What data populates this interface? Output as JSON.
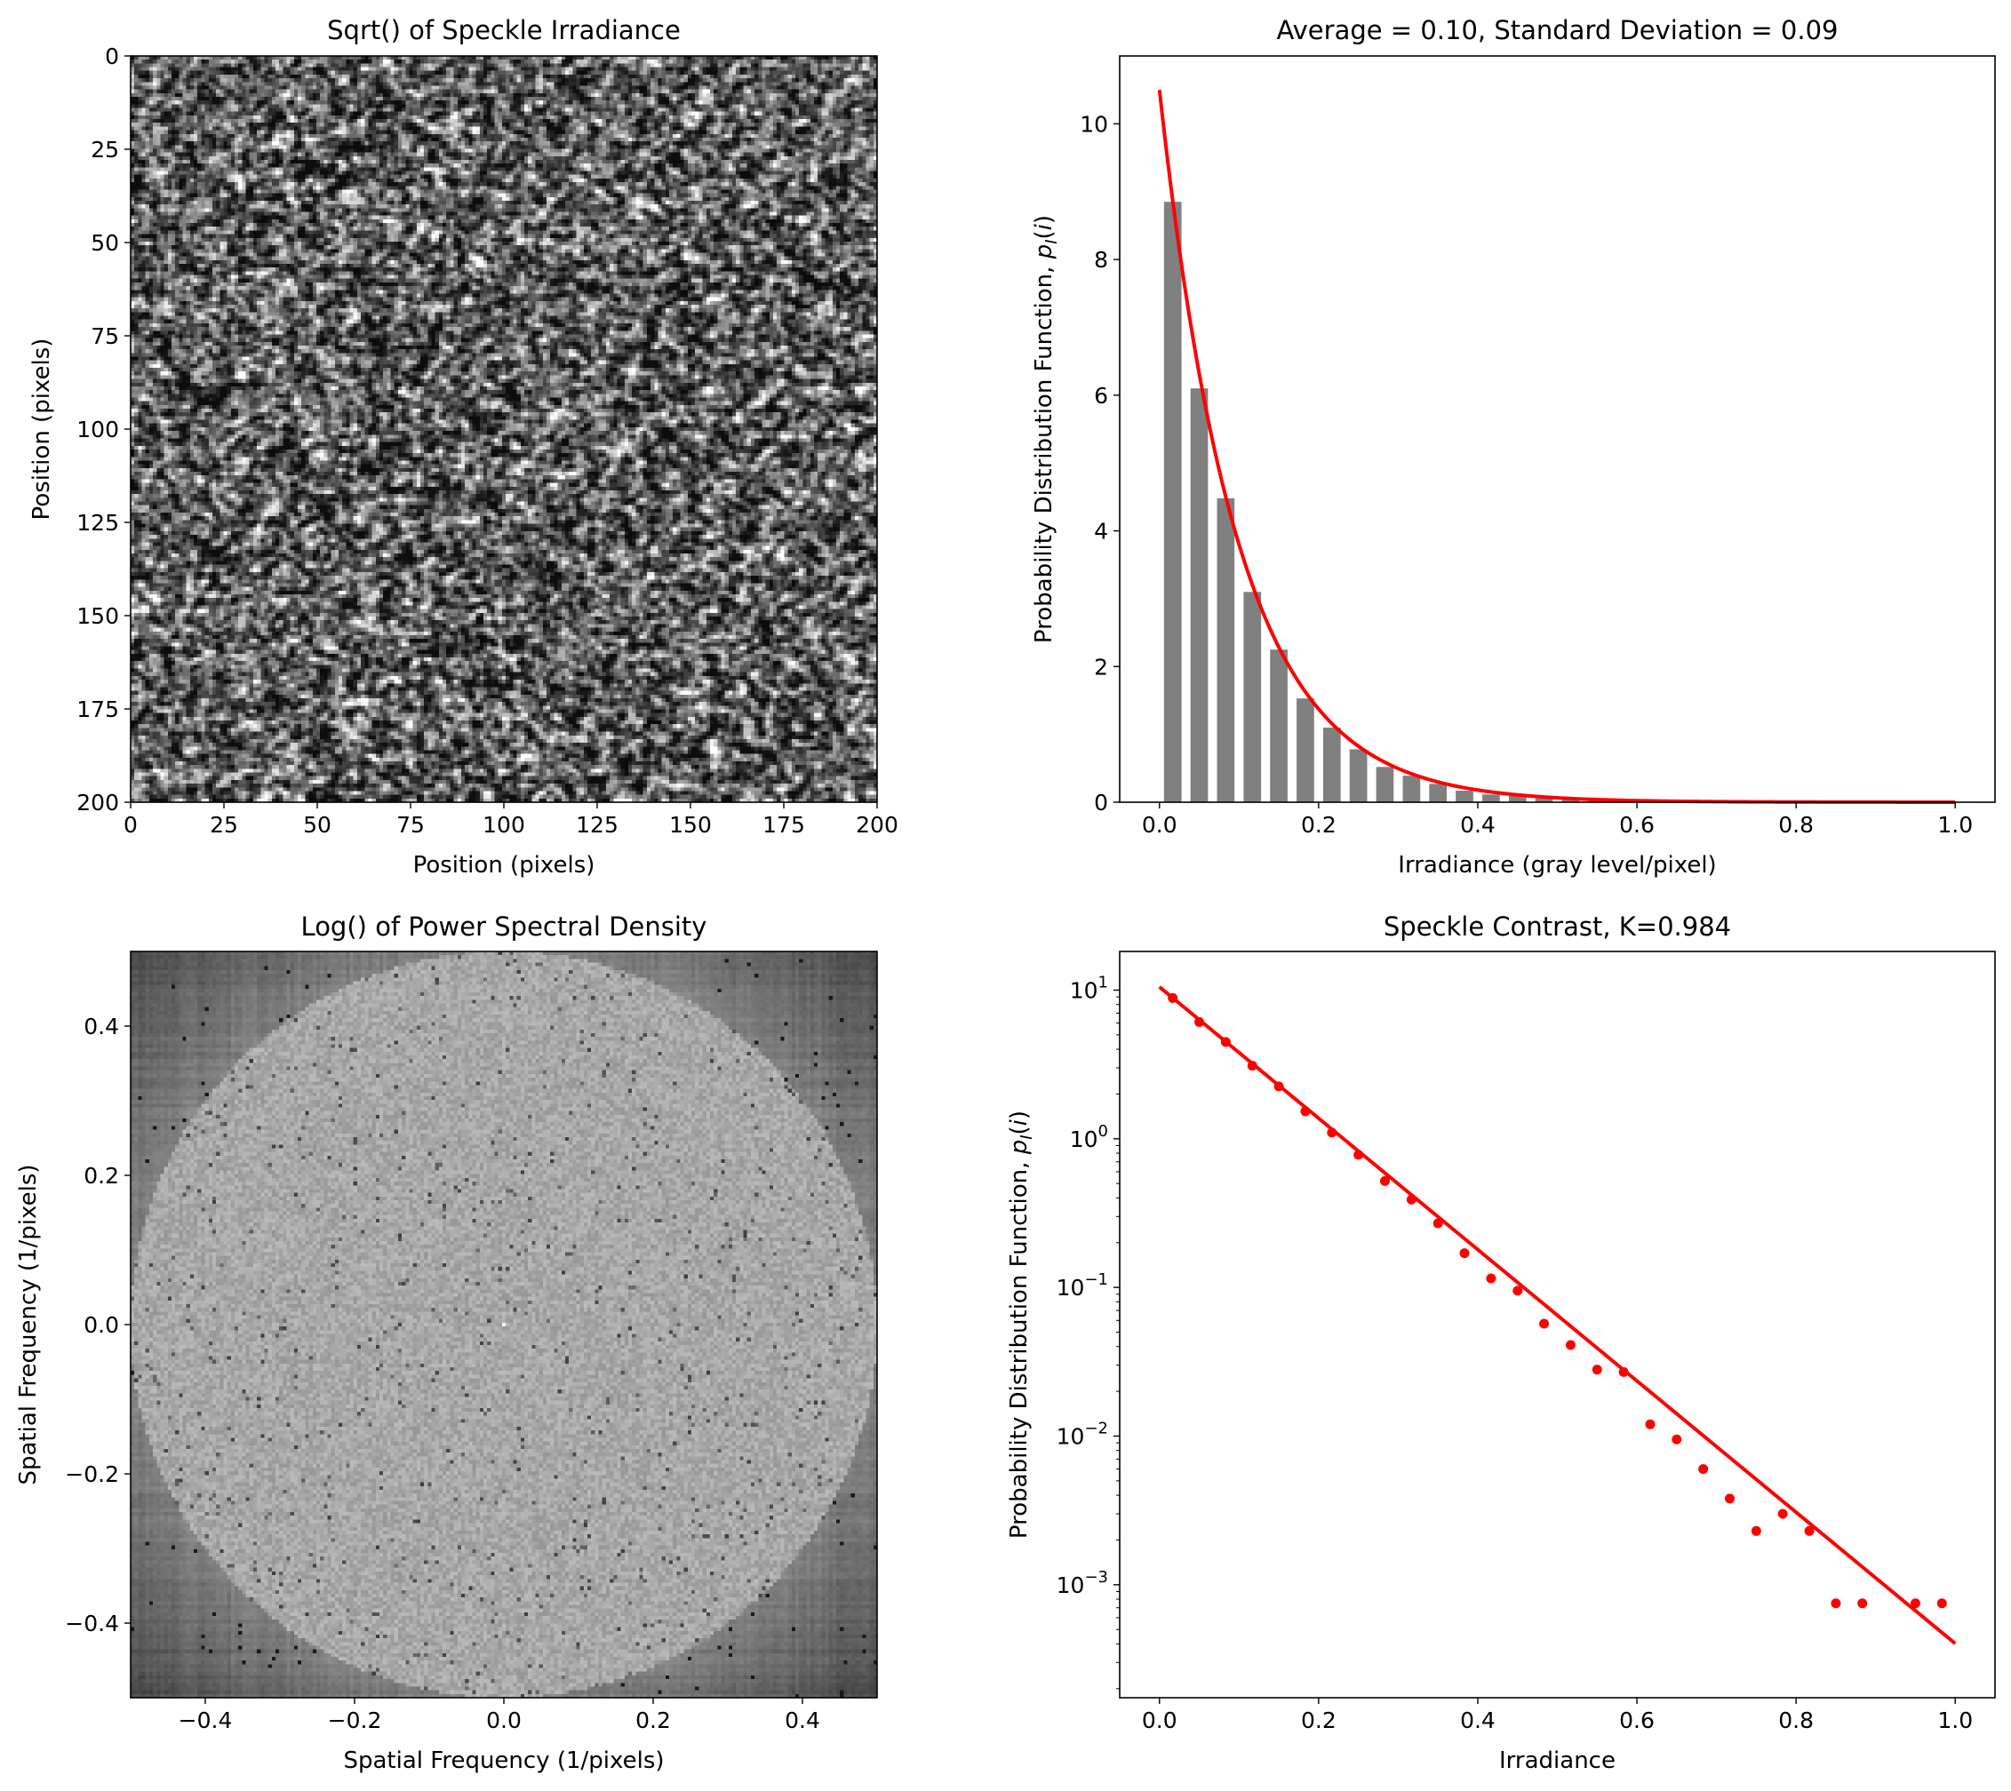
{
  "chart_data": [
    {
      "type": "heatmap",
      "title": "Sqrt() of Speckle Irradiance",
      "xlabel": "Position (pixels)",
      "ylabel": "Position (pixels)",
      "xlim": [
        0,
        200
      ],
      "ylim": [
        200,
        0
      ],
      "xticks": [
        "0",
        "25",
        "50",
        "75",
        "100",
        "125",
        "150",
        "175",
        "200"
      ],
      "yticks": [
        "0",
        "25",
        "50",
        "75",
        "100",
        "125",
        "150",
        "175",
        "200"
      ],
      "colormap": "gray"
    },
    {
      "type": "bar",
      "title": "Average = 0.10, Standard Deviation = 0.09",
      "xlabel": "Irradiance (gray level/pixel)",
      "ylabel_prefix": "Probability Distribution Function, ",
      "ylabel_symbol": "p",
      "ylabel_sub": "I",
      "ylabel_arg": "i",
      "xlim": [
        -0.05,
        1.05
      ],
      "ylim": [
        0,
        11
      ],
      "xticks": [
        "0.0",
        "0.2",
        "0.4",
        "0.6",
        "0.8",
        "1.0"
      ],
      "yticks": [
        "0",
        "2",
        "4",
        "6",
        "8",
        "10"
      ],
      "bar_color": "#808080",
      "bar_width": 0.022,
      "bars": {
        "x": [
          0.0167,
          0.05,
          0.0833,
          0.1167,
          0.15,
          0.1833,
          0.2167,
          0.25,
          0.2833,
          0.3167,
          0.35,
          0.3833,
          0.4167,
          0.45,
          0.4833,
          0.5167,
          0.55,
          0.5833,
          0.6167,
          0.65,
          0.6833,
          0.7167,
          0.75,
          0.7833,
          0.8167,
          0.85,
          0.8833,
          0.9167,
          0.95,
          0.9833
        ],
        "values": [
          8.85,
          6.1,
          4.48,
          3.1,
          2.25,
          1.53,
          1.1,
          0.78,
          0.52,
          0.39,
          0.27,
          0.17,
          0.115,
          0.095,
          0.057,
          0.041,
          0.028,
          0.027,
          0.012,
          0.0095,
          0.006,
          0.0038,
          0.0023,
          0.003,
          0.0023,
          0.00075,
          0.00075,
          0.0,
          0.00075,
          0.00075
        ]
      },
      "curve": {
        "color": "#ff0000",
        "amplitude": 10.5,
        "decay": 10.17,
        "x_range": [
          0,
          1
        ]
      }
    },
    {
      "type": "heatmap",
      "title": "Log() of Power Spectral Density",
      "xlabel": "Spatial Frequency (1/pixels)",
      "ylabel": "Spatial Frequency (1/pixels)",
      "xlim": [
        -0.5,
        0.5
      ],
      "ylim": [
        -0.5,
        0.5
      ],
      "xticks": [
        "−0.4",
        "−0.2",
        "0.0",
        "0.2",
        "0.4"
      ],
      "yticks": [
        "0.4",
        "0.2",
        "0.0",
        "−0.2",
        "−0.4"
      ],
      "colormap": "gray",
      "disk_radius": 0.5
    },
    {
      "type": "scatter",
      "title": "Speckle Contrast, K=0.984",
      "xlabel": "Irradiance",
      "ylabel_prefix": "Probability Distribution Function, ",
      "ylabel_symbol": "p",
      "ylabel_sub": "I",
      "ylabel_arg": "i",
      "yscale": "log",
      "xlim": [
        -0.05,
        1.05
      ],
      "ylim_log10": [
        -3.76,
        1.26
      ],
      "xticks": [
        "0.0",
        "0.2",
        "0.4",
        "0.6",
        "0.8",
        "1.0"
      ],
      "yticks": [
        {
          "base": "10",
          "exp": "1"
        },
        {
          "base": "10",
          "exp": "0"
        },
        {
          "base": "10",
          "exp": "−1"
        },
        {
          "base": "10",
          "exp": "−2"
        },
        {
          "base": "10",
          "exp": "−3"
        }
      ],
      "points": {
        "x": [
          0.0167,
          0.05,
          0.0833,
          0.1167,
          0.15,
          0.1833,
          0.2167,
          0.25,
          0.2833,
          0.3167,
          0.35,
          0.3833,
          0.4167,
          0.45,
          0.4833,
          0.5167,
          0.55,
          0.5833,
          0.6167,
          0.65,
          0.6833,
          0.7167,
          0.75,
          0.7833,
          0.8167,
          0.85,
          0.8833,
          0.95,
          0.9833
        ],
        "values": [
          8.85,
          6.1,
          4.48,
          3.1,
          2.25,
          1.53,
          1.1,
          0.78,
          0.52,
          0.39,
          0.27,
          0.17,
          0.115,
          0.095,
          0.057,
          0.041,
          0.028,
          0.027,
          0.012,
          0.0095,
          0.006,
          0.0038,
          0.0023,
          0.003,
          0.0023,
          0.00075,
          0.00075,
          0.00075,
          0.00075
        ]
      },
      "color": "#ff0000",
      "curve": {
        "color": "#ff0000",
        "amplitude": 10.5,
        "decay": 10.17,
        "x_range": [
          0,
          1
        ]
      }
    }
  ]
}
